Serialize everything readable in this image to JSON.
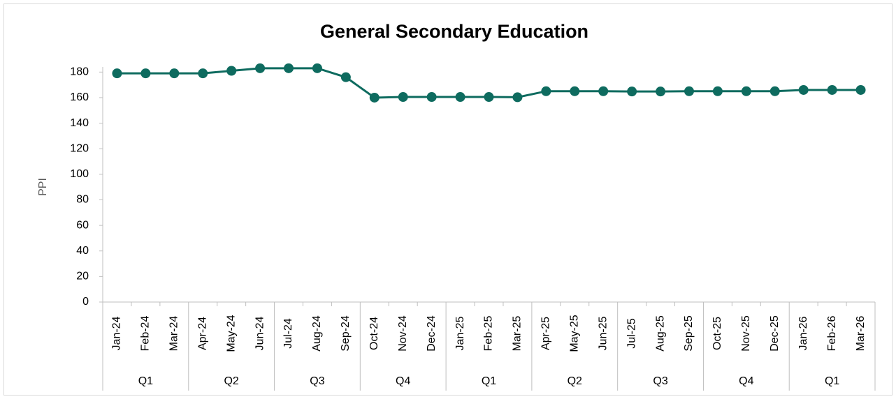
{
  "chart_data": {
    "type": "line",
    "title": "General Secondary Education",
    "y_label": "PPI",
    "categories": [
      "Jan-24",
      "Feb-24",
      "Mar-24",
      "Apr-24",
      "May-24",
      "Jun-24",
      "Jul-24",
      "Aug-24",
      "Sep-24",
      "Oct-24",
      "Nov-24",
      "Dec-24",
      "Jan-25",
      "Feb-25",
      "Mar-25",
      "Apr-25",
      "May-25",
      "Jun-25",
      "Jul-25",
      "Aug-25",
      "Sep-25",
      "Oct-25",
      "Nov-25",
      "Dec-25",
      "Jan-26",
      "Feb-26",
      "Mar-26"
    ],
    "quarters": [
      "Q1",
      "Q2",
      "Q3",
      "Q4",
      "Q1",
      "Q2",
      "Q3",
      "Q4",
      "Q1"
    ],
    "series": [
      {
        "name": "PPI",
        "color": "#0e6b5f",
        "values": [
          179,
          179,
          179,
          179,
          181,
          183,
          183,
          183,
          176,
          160,
          160.5,
          160.5,
          160.5,
          160.5,
          160.3,
          165,
          165,
          165,
          164.8,
          164.8,
          165,
          165,
          165,
          165,
          166,
          166,
          166
        ]
      }
    ],
    "ylim": [
      0,
      184
    ],
    "yticks": [
      0,
      20,
      40,
      60,
      80,
      100,
      120,
      140,
      160,
      180
    ]
  }
}
